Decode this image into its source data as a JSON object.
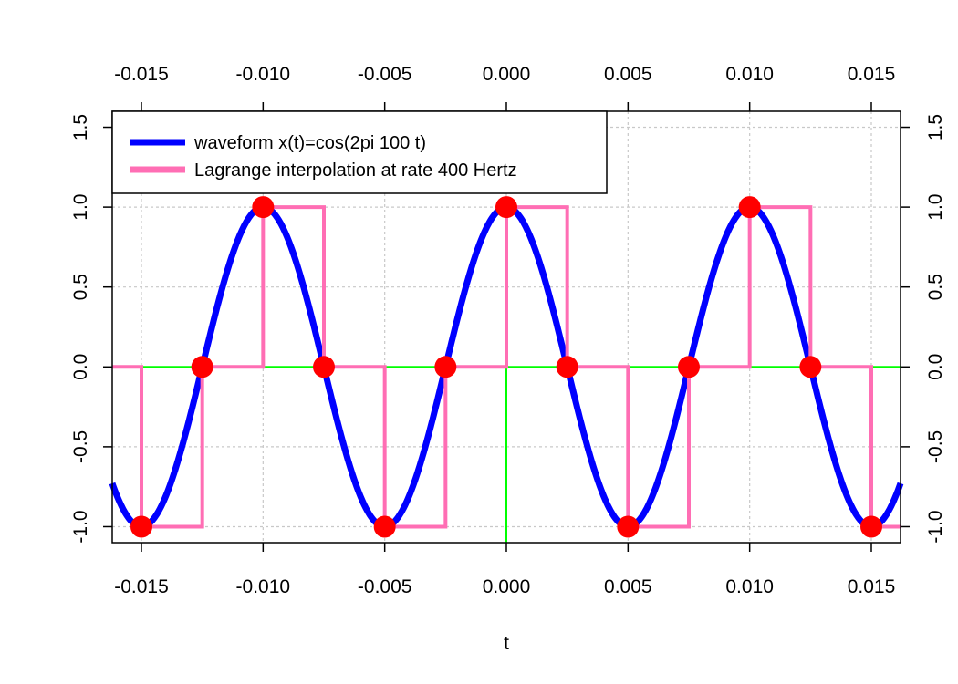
{
  "chart_data": {
    "type": "line",
    "title": "",
    "xlabel": "t",
    "ylabel": "",
    "xlim": [
      -0.0162,
      0.0162
    ],
    "ylim": [
      -1.1,
      1.6
    ],
    "grid": true,
    "x_ticks": [
      -0.015,
      -0.01,
      -0.005,
      0.0,
      0.005,
      0.01,
      0.015
    ],
    "x_tick_labels": [
      "-0.015",
      "-0.010",
      "-0.005",
      "0.000",
      "0.005",
      "0.010",
      "0.015"
    ],
    "y_ticks": [
      -1.0,
      -0.5,
      0.0,
      0.5,
      1.0,
      1.5
    ],
    "y_tick_labels": [
      "-1.0",
      "-0.5",
      "0.0",
      "0.5",
      "1.0",
      "1.5"
    ],
    "legend_position": "top-left",
    "reference_lines": {
      "color": "#00ff00",
      "horizontal_y": 0,
      "vertical_x": 0
    },
    "series": [
      {
        "name": "waveform x(t)=cos(2pi 100 t)",
        "kind": "function",
        "frequency": 100,
        "color": "#0000ff"
      },
      {
        "name": "Lagrange interpolation at rate 400 Hertz",
        "kind": "step",
        "color": "#ff6eb4",
        "x": [
          -0.0162,
          -0.015,
          -0.0125,
          -0.01,
          -0.0075,
          -0.005,
          -0.0025,
          0.0,
          0.0025,
          0.005,
          0.0075,
          0.01,
          0.0125,
          0.015,
          0.0162
        ],
        "y": [
          0,
          -1,
          0,
          1,
          0,
          -1,
          0,
          1,
          0,
          -1,
          0,
          1,
          0,
          -1,
          -1
        ]
      }
    ],
    "samples": {
      "color": "#ff0000",
      "x": [
        -0.015,
        -0.0125,
        -0.01,
        -0.0075,
        -0.005,
        -0.0025,
        0.0,
        0.0025,
        0.005,
        0.0075,
        0.01,
        0.0125,
        0.015
      ],
      "y": [
        -1,
        0,
        1,
        0,
        -1,
        0,
        1,
        0,
        -1,
        0,
        1,
        0,
        -1
      ]
    }
  }
}
